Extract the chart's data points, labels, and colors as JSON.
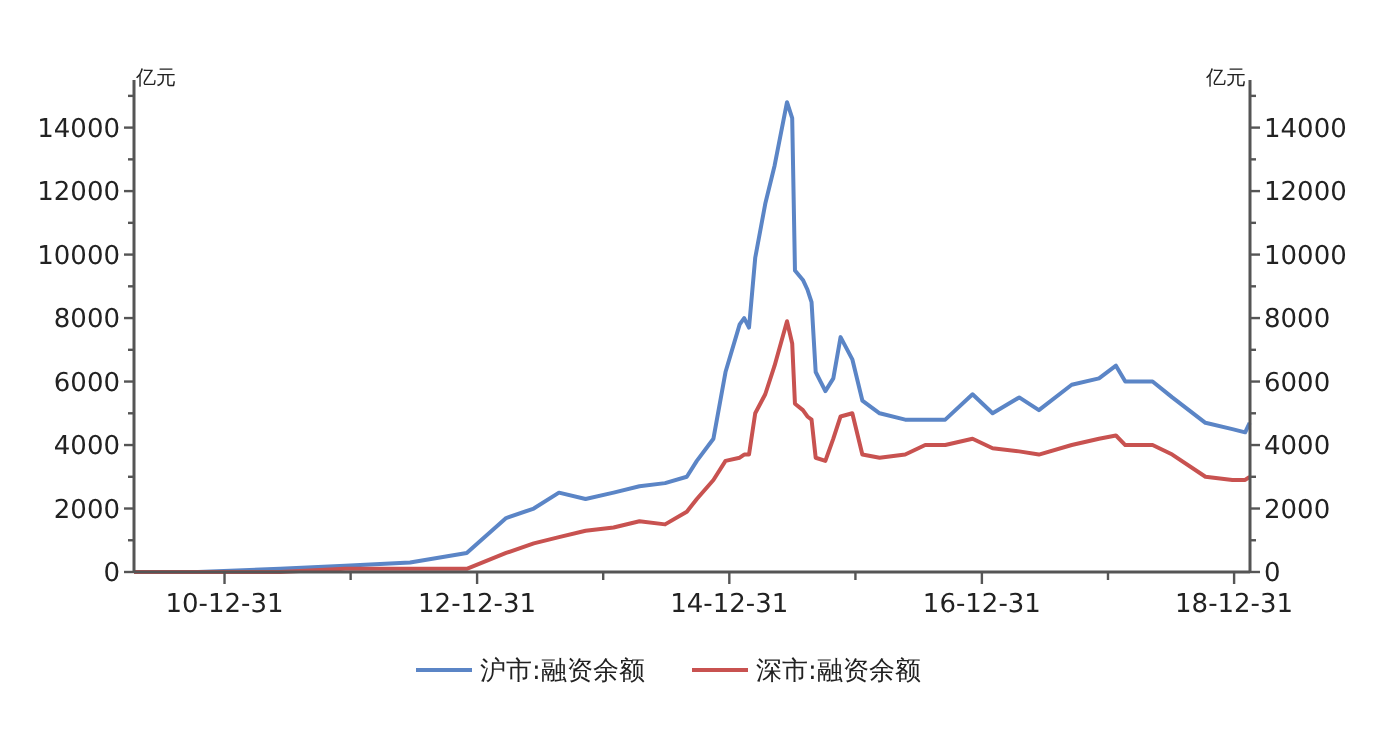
{
  "chart_data": {
    "type": "line",
    "ylabel": "亿元",
    "y2label": "亿元",
    "legend": "bottom",
    "grid": false,
    "marker": "none",
    "line_style": "solid",
    "x": [
      "2010-04-13",
      "2010-10-15",
      "2011-06-10",
      "2011-12-15",
      "2012-06-20",
      "2012-12-01",
      "2013-03-25",
      "2013-06-13",
      "2013-08-25",
      "2013-11-10",
      "2014-01-30",
      "2014-04-15",
      "2014-06-28",
      "2014-08-30",
      "2014-09-28",
      "2014-11-15",
      "2014-12-20",
      "2015-01-30",
      "2015-02-12",
      "2015-02-26",
      "2015-03-16",
      "2015-04-14",
      "2015-05-11",
      "2015-06-16",
      "2015-07-01",
      "2015-07-09",
      "2015-08-01",
      "2015-08-14",
      "2015-08-26",
      "2015-09-07",
      "2015-10-05",
      "2015-10-28",
      "2015-11-18",
      "2015-12-22",
      "2016-01-20",
      "2016-03-10",
      "2016-05-23",
      "2016-07-20",
      "2016-09-16",
      "2016-12-04",
      "2017-01-31",
      "2017-04-18",
      "2017-06-14",
      "2017-09-17",
      "2017-12-05",
      "2018-01-23",
      "2018-02-19",
      "2018-05-09",
      "2018-07-05",
      "2018-10-09",
      "2018-12-26",
      "2019-02-01",
      "2019-02-14"
    ],
    "series": [
      {
        "name": "沪市:融资余额",
        "color": "#5b85c6",
        "values": [
          0,
          0,
          100,
          200,
          300,
          600,
          1700,
          2000,
          2500,
          2300,
          2500,
          2700,
          2800,
          3000,
          3500,
          4200,
          6300,
          7800,
          8000,
          7700,
          9900,
          11600,
          12800,
          14800,
          14300,
          9500,
          9200,
          8900,
          8500,
          6300,
          5700,
          6100,
          7400,
          6700,
          5400,
          5000,
          4800,
          4800,
          4800,
          5600,
          5000,
          5500,
          5100,
          5900,
          6100,
          6500,
          6000,
          6000,
          5500,
          4700,
          4500,
          4400,
          4700
        ]
      },
      {
        "name": "深市:融资余额",
        "color": "#c85250",
        "values": [
          0,
          0,
          0,
          100,
          100,
          100,
          600,
          900,
          1100,
          1300,
          1400,
          1600,
          1500,
          1900,
          2300,
          2900,
          3500,
          3600,
          3700,
          3700,
          5000,
          5600,
          6500,
          7900,
          7200,
          5300,
          5100,
          4900,
          4800,
          3600,
          3500,
          4200,
          4900,
          5000,
          3700,
          3600,
          3700,
          4000,
          4000,
          4200,
          3900,
          3800,
          3700,
          4000,
          4200,
          4300,
          4000,
          4000,
          3700,
          3000,
          2900,
          2900,
          3000
        ]
      }
    ],
    "xlim": [
      "2010-04-13",
      "2019-02-15"
    ],
    "xticks": [
      {
        "value": "2010-12-31",
        "label": "10-12-31"
      },
      {
        "value": "2011-12-31",
        "label": null
      },
      {
        "value": "2012-12-31",
        "label": "12-12-31"
      },
      {
        "value": "2013-12-31",
        "label": null
      },
      {
        "value": "2014-12-31",
        "label": "14-12-31"
      },
      {
        "value": "2015-12-31",
        "label": null
      },
      {
        "value": "2016-12-31",
        "label": "16-12-31"
      },
      {
        "value": "2017-12-31",
        "label": null
      },
      {
        "value": "2018-12-31",
        "label": "18-12-31"
      }
    ],
    "ylim": [
      0,
      15500
    ],
    "yticks": [
      0,
      {
        "value": 1000,
        "label": null
      },
      2000,
      {
        "value": 3000,
        "label": null
      },
      4000,
      {
        "value": 5000,
        "label": null
      },
      6000,
      {
        "value": 7000,
        "label": null
      },
      8000,
      {
        "value": 9000,
        "label": null
      },
      10000,
      {
        "value": 11000,
        "label": null
      },
      12000,
      {
        "value": 13000,
        "label": null
      },
      14000,
      {
        "value": 15000,
        "label": null
      }
    ],
    "y2lim": [
      0,
      15500
    ],
    "y2ticks": [
      0,
      {
        "value": 1000,
        "label": null
      },
      2000,
      {
        "value": 3000,
        "label": null
      },
      4000,
      {
        "value": 5000,
        "label": null
      },
      6000,
      {
        "value": 7000,
        "label": null
      },
      8000,
      {
        "value": 9000,
        "label": null
      },
      10000,
      {
        "value": 11000,
        "label": null
      },
      12000,
      {
        "value": 13000,
        "label": null
      },
      14000,
      {
        "value": 15000,
        "label": null
      }
    ]
  }
}
